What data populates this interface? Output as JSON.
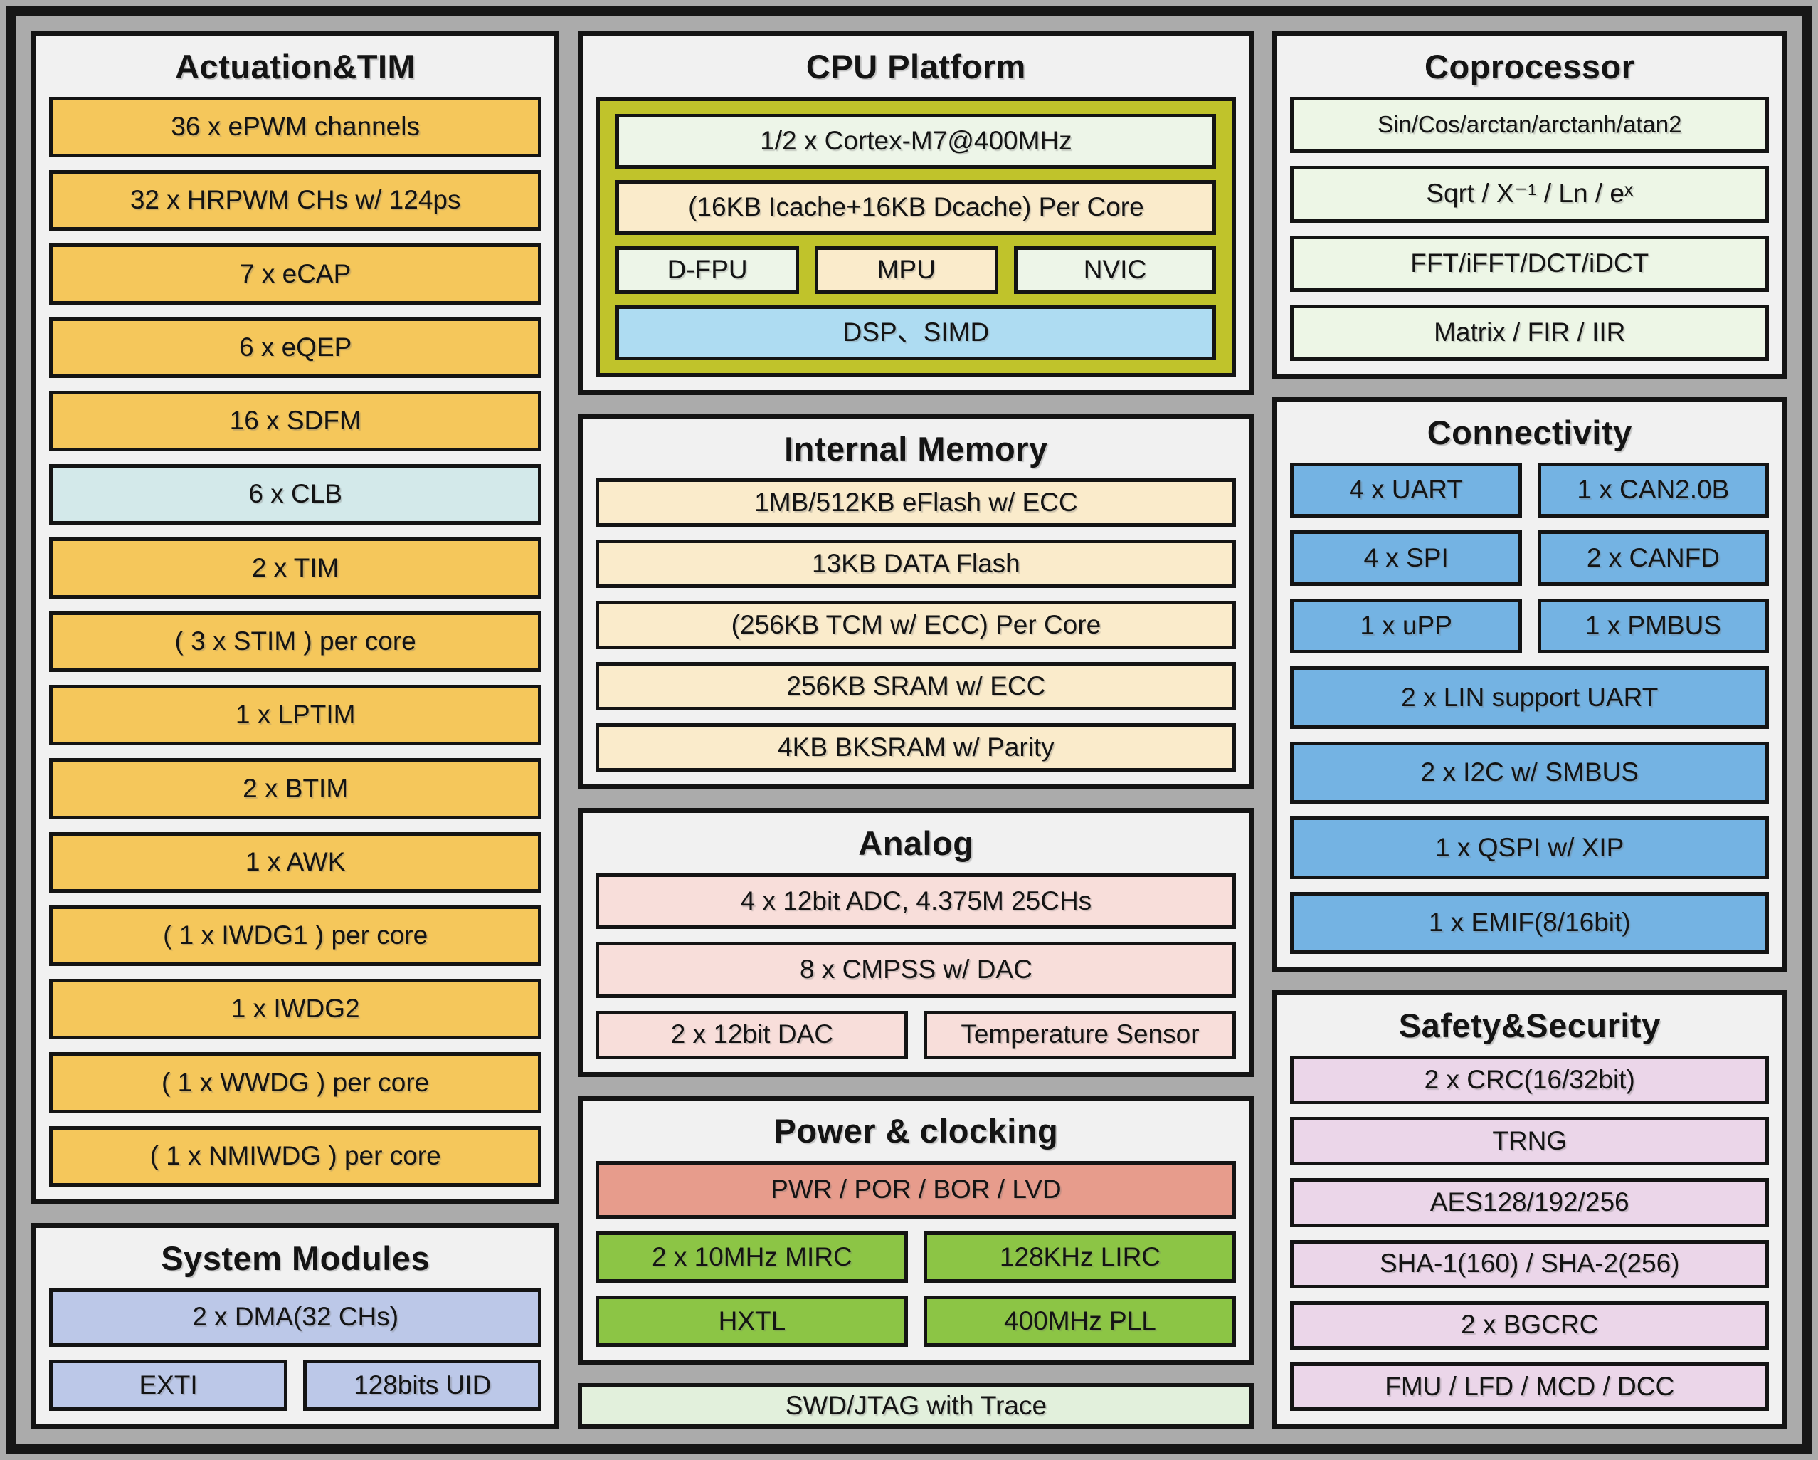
{
  "colors": {
    "canvas_bg": "#ABABAB",
    "frame_border": "#161616",
    "panel_bg": "#F1F1F1",
    "line": "#141414",
    "orange": "#F5C75B",
    "cyan": "#D3E9EA",
    "lavender_blue": "#BCC8E8",
    "olive": "#C0C32B",
    "pale_green": "#EDF5E8",
    "cream": "#FAEBCB",
    "sky_blue": "#AEDCF2",
    "pink": "#F8DEDA",
    "salmon": "#E79C8C",
    "green": "#8CC545",
    "mint": "#E2F0DC",
    "coproc_green": "#EDF6E6",
    "blue": "#74B3E3",
    "pale_pink": "#EBD6E9"
  },
  "actuation": {
    "title": "Actuation&TIM",
    "blocks": [
      "36 x ePWM channels",
      "32 x HRPWM CHs w/ 124ps",
      "7 x eCAP",
      "6 x eQEP",
      "16 x SDFM",
      "6 x CLB",
      "2 x TIM",
      "( 3 x STIM ) per core",
      "1 x LPTIM",
      "2 x BTIM",
      "1 x AWK",
      "( 1 x IWDG1 ) per core",
      "1 x IWDG2",
      "( 1 x WWDG ) per core",
      "( 1 x NMIWDG ) per core"
    ]
  },
  "system_modules": {
    "title": "System Modules",
    "dma": "2 x DMA(32 CHs)",
    "exti": "EXTI",
    "uid": "128bits UID"
  },
  "cpu": {
    "title": "CPU Platform",
    "core": "1/2 x Cortex-M7@400MHz",
    "cache": "(16KB Icache+16KB Dcache) Per Core",
    "dfpu": "D-FPU",
    "mpu": "MPU",
    "nvic": "NVIC",
    "dsp": "DSP、SIMD"
  },
  "memory": {
    "title": "Internal Memory",
    "blocks": [
      "1MB/512KB eFlash w/ ECC",
      "13KB DATA Flash",
      "(256KB TCM w/ ECC) Per Core",
      "256KB SRAM w/ ECC",
      "4KB BKSRAM w/ Parity"
    ]
  },
  "analog": {
    "title": "Analog",
    "adc": "4 x 12bit ADC, 4.375M 25CHs",
    "cmpss": "8 x CMPSS w/ DAC",
    "dac": "2 x 12bit DAC",
    "temp_sensor": "Temperature Sensor"
  },
  "power": {
    "title": "Power & clocking",
    "pwr": "PWR / POR / BOR / LVD",
    "mirc": "2 x 10MHz MIRC",
    "lirc": "128KHz LIRC",
    "hxtl": "HXTL",
    "pll": "400MHz PLL"
  },
  "debug": {
    "swd": "SWD/JTAG with Trace"
  },
  "coprocessor": {
    "title": "Coprocessor",
    "blocks": [
      "Sin/Cos/arctan/arctanh/atan2",
      "Sqrt / X⁻¹ / Ln / eˣ",
      "FFT/iFFT/DCT/iDCT",
      "Matrix / FIR / IIR"
    ]
  },
  "connectivity": {
    "title": "Connectivity",
    "pairs": [
      [
        "4 x UART",
        "1 x CAN2.0B"
      ],
      [
        "4 x SPI",
        "2 x CANFD"
      ],
      [
        "1 x uPP",
        "1 x PMBUS"
      ]
    ],
    "full": [
      "2 x LIN support UART",
      "2 x I2C w/ SMBUS",
      "1 x QSPI w/ XIP",
      "1 x EMIF(8/16bit)"
    ]
  },
  "safety": {
    "title": "Safety&Security",
    "blocks": [
      "2 x CRC(16/32bit)",
      "TRNG",
      "AES128/192/256",
      "SHA-1(160) / SHA-2(256)",
      "2 x BGCRC",
      "FMU / LFD / MCD / DCC"
    ]
  }
}
